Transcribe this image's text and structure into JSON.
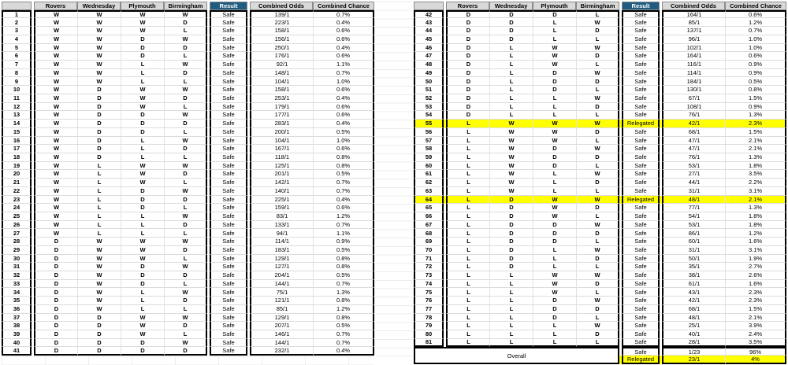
{
  "columns": [
    "Rovers",
    "Wednesday",
    "Plymouth",
    "Birmingham",
    "Result",
    "Combined Odds",
    "Combined Chance"
  ],
  "colors": {
    "header_bg": "#D9D9D9",
    "result_header_bg": "#1F5C80",
    "result_header_text": "#FFFFFF",
    "highlight": "#FFFF00",
    "box_border": "#000000",
    "gridline": "#DCDCDC"
  },
  "tables": [
    {
      "highlighted": [],
      "rows": [
        [
          1,
          "W",
          "W",
          "W",
          "W",
          "Safe",
          "139/1",
          "0.7%"
        ],
        [
          2,
          "W",
          "W",
          "W",
          "D",
          "Safe",
          "223/1",
          "0.4%"
        ],
        [
          3,
          "W",
          "W",
          "W",
          "L",
          "Safe",
          "158/1",
          "0.6%"
        ],
        [
          4,
          "W",
          "W",
          "D",
          "W",
          "Safe",
          "156/1",
          "0.6%"
        ],
        [
          5,
          "W",
          "W",
          "D",
          "D",
          "Safe",
          "250/1",
          "0.4%"
        ],
        [
          6,
          "W",
          "W",
          "D",
          "L",
          "Safe",
          "176/1",
          "0.6%"
        ],
        [
          7,
          "W",
          "W",
          "L",
          "W",
          "Safe",
          "92/1",
          "1.1%"
        ],
        [
          8,
          "W",
          "W",
          "L",
          "D",
          "Safe",
          "148/1",
          "0.7%"
        ],
        [
          9,
          "W",
          "W",
          "L",
          "L",
          "Safe",
          "104/1",
          "1.0%"
        ],
        [
          10,
          "W",
          "D",
          "W",
          "W",
          "Safe",
          "158/1",
          "0.6%"
        ],
        [
          11,
          "W",
          "D",
          "W",
          "D",
          "Safe",
          "253/1",
          "0.4%"
        ],
        [
          12,
          "W",
          "D",
          "W",
          "L",
          "Safe",
          "179/1",
          "0.6%"
        ],
        [
          13,
          "W",
          "D",
          "D",
          "W",
          "Safe",
          "177/1",
          "0.6%"
        ],
        [
          14,
          "W",
          "D",
          "D",
          "D",
          "Safe",
          "283/1",
          "0.4%"
        ],
        [
          15,
          "W",
          "D",
          "D",
          "L",
          "Safe",
          "200/1",
          "0.5%"
        ],
        [
          16,
          "W",
          "D",
          "L",
          "W",
          "Safe",
          "104/1",
          "1.0%"
        ],
        [
          17,
          "W",
          "D",
          "L",
          "D",
          "Safe",
          "167/1",
          "0.6%"
        ],
        [
          18,
          "W",
          "D",
          "L",
          "L",
          "Safe",
          "118/1",
          "0.8%"
        ],
        [
          19,
          "W",
          "L",
          "W",
          "W",
          "Safe",
          "125/1",
          "0.8%"
        ],
        [
          20,
          "W",
          "L",
          "W",
          "D",
          "Safe",
          "201/1",
          "0.5%"
        ],
        [
          21,
          "W",
          "L",
          "W",
          "L",
          "Safe",
          "142/1",
          "0.7%"
        ],
        [
          22,
          "W",
          "L",
          "D",
          "W",
          "Safe",
          "140/1",
          "0.7%"
        ],
        [
          23,
          "W",
          "L",
          "D",
          "D",
          "Safe",
          "225/1",
          "0.4%"
        ],
        [
          24,
          "W",
          "L",
          "D",
          "L",
          "Safe",
          "159/1",
          "0.6%"
        ],
        [
          25,
          "W",
          "L",
          "L",
          "W",
          "Safe",
          "83/1",
          "1.2%"
        ],
        [
          26,
          "W",
          "L",
          "L",
          "D",
          "Safe",
          "133/1",
          "0.7%"
        ],
        [
          27,
          "W",
          "L",
          "L",
          "L",
          "Safe",
          "94/1",
          "1.1%"
        ],
        [
          28,
          "D",
          "W",
          "W",
          "W",
          "Safe",
          "114/1",
          "0.9%"
        ],
        [
          29,
          "D",
          "W",
          "W",
          "D",
          "Safe",
          "183/1",
          "0.5%"
        ],
        [
          30,
          "D",
          "W",
          "W",
          "L",
          "Safe",
          "129/1",
          "0.8%"
        ],
        [
          31,
          "D",
          "W",
          "D",
          "W",
          "Safe",
          "127/1",
          "0.8%"
        ],
        [
          32,
          "D",
          "W",
          "D",
          "D",
          "Safe",
          "204/1",
          "0.5%"
        ],
        [
          33,
          "D",
          "W",
          "D",
          "L",
          "Safe",
          "144/1",
          "0.7%"
        ],
        [
          34,
          "D",
          "W",
          "L",
          "W",
          "Safe",
          "75/1",
          "1.3%"
        ],
        [
          35,
          "D",
          "W",
          "L",
          "D",
          "Safe",
          "121/1",
          "0.8%"
        ],
        [
          36,
          "D",
          "W",
          "L",
          "L",
          "Safe",
          "85/1",
          "1.2%"
        ],
        [
          37,
          "D",
          "D",
          "W",
          "W",
          "Safe",
          "129/1",
          "0.8%"
        ],
        [
          38,
          "D",
          "D",
          "W",
          "D",
          "Safe",
          "207/1",
          "0.5%"
        ],
        [
          39,
          "D",
          "D",
          "W",
          "L",
          "Safe",
          "146/1",
          "0.7%"
        ],
        [
          40,
          "D",
          "D",
          "D",
          "W",
          "Safe",
          "144/1",
          "0.7%"
        ],
        [
          41,
          "D",
          "D",
          "D",
          "D",
          "Safe",
          "232/1",
          "0.4%"
        ]
      ]
    },
    {
      "highlighted": [
        55,
        64
      ],
      "rows": [
        [
          42,
          "D",
          "D",
          "D",
          "L",
          "Safe",
          "164/1",
          "0.6%"
        ],
        [
          43,
          "D",
          "D",
          "L",
          "W",
          "Safe",
          "85/1",
          "1.2%"
        ],
        [
          44,
          "D",
          "D",
          "L",
          "D",
          "Safe",
          "137/1",
          "0.7%"
        ],
        [
          45,
          "D",
          "D",
          "L",
          "L",
          "Safe",
          "96/1",
          "1.0%"
        ],
        [
          46,
          "D",
          "L",
          "W",
          "W",
          "Safe",
          "102/1",
          "1.0%"
        ],
        [
          47,
          "D",
          "L",
          "W",
          "D",
          "Safe",
          "164/1",
          "0.6%"
        ],
        [
          48,
          "D",
          "L",
          "W",
          "L",
          "Safe",
          "116/1",
          "0.9%"
        ],
        [
          49,
          "D",
          "L",
          "D",
          "W",
          "Safe",
          "114/1",
          "0.9%"
        ],
        [
          50,
          "D",
          "L",
          "D",
          "D",
          "Safe",
          "184/1",
          "0.5%"
        ],
        [
          51,
          "D",
          "L",
          "D",
          "L",
          "Safe",
          "130/1",
          "0.8%"
        ],
        [
          52,
          "D",
          "L",
          "L",
          "W",
          "Safe",
          "67/1",
          "1.5%"
        ],
        [
          53,
          "D",
          "L",
          "L",
          "D",
          "Safe",
          "108/1",
          "0.9%"
        ],
        [
          54,
          "D",
          "L",
          "L",
          "L",
          "Safe",
          "76/1",
          "1.3%"
        ],
        [
          55,
          "L",
          "W",
          "W",
          "W",
          "Relegated",
          "42/1",
          "2.3%"
        ],
        [
          56,
          "L",
          "W",
          "W",
          "D",
          "Safe",
          "68/1",
          "1.5%"
        ],
        [
          57,
          "L",
          "W",
          "W",
          "L",
          "Safe",
          "47/1",
          "2.1%"
        ],
        [
          58,
          "L",
          "W",
          "D",
          "W",
          "Safe",
          "47/1",
          "2.1%"
        ],
        [
          59,
          "L",
          "W",
          "D",
          "D",
          "Safe",
          "76/1",
          "1.3%"
        ],
        [
          60,
          "L",
          "W",
          "D",
          "L",
          "Safe",
          "53/1",
          "1.8%"
        ],
        [
          61,
          "L",
          "W",
          "L",
          "W",
          "Safe",
          "27/1",
          "3.5%"
        ],
        [
          62,
          "L",
          "W",
          "L",
          "D",
          "Safe",
          "44/1",
          "2.2%"
        ],
        [
          63,
          "L",
          "W",
          "L",
          "L",
          "Safe",
          "31/1",
          "3.1%"
        ],
        [
          64,
          "L",
          "D",
          "W",
          "W",
          "Relegated",
          "48/1",
          "2.1%"
        ],
        [
          65,
          "L",
          "D",
          "W",
          "D",
          "Safe",
          "77/1",
          "1.3%"
        ],
        [
          66,
          "L",
          "D",
          "W",
          "L",
          "Safe",
          "54/1",
          "1.8%"
        ],
        [
          67,
          "L",
          "D",
          "D",
          "W",
          "Safe",
          "53/1",
          "1.8%"
        ],
        [
          68,
          "L",
          "D",
          "D",
          "D",
          "Safe",
          "86/1",
          "1.2%"
        ],
        [
          69,
          "L",
          "D",
          "D",
          "L",
          "Safe",
          "60/1",
          "1.6%"
        ],
        [
          70,
          "L",
          "D",
          "L",
          "W",
          "Safe",
          "31/1",
          "3.1%"
        ],
        [
          71,
          "L",
          "D",
          "L",
          "D",
          "Safe",
          "50/1",
          "1.9%"
        ],
        [
          72,
          "L",
          "D",
          "L",
          "L",
          "Safe",
          "35/1",
          "2.7%"
        ],
        [
          73,
          "L",
          "L",
          "W",
          "W",
          "Safe",
          "38/1",
          "2.6%"
        ],
        [
          74,
          "L",
          "L",
          "W",
          "D",
          "Safe",
          "61/1",
          "1.6%"
        ],
        [
          75,
          "L",
          "L",
          "W",
          "L",
          "Safe",
          "43/1",
          "2.3%"
        ],
        [
          76,
          "L",
          "L",
          "D",
          "W",
          "Safe",
          "42/1",
          "2.3%"
        ],
        [
          77,
          "L",
          "L",
          "D",
          "D",
          "Safe",
          "68/1",
          "1.5%"
        ],
        [
          78,
          "L",
          "L",
          "D",
          "L",
          "Safe",
          "48/1",
          "2.1%"
        ],
        [
          79,
          "L",
          "L",
          "L",
          "W",
          "Safe",
          "25/1",
          "3.9%"
        ],
        [
          80,
          "L",
          "L",
          "L",
          "D",
          "Safe",
          "40/1",
          "2.4%"
        ],
        [
          81,
          "L",
          "L",
          "L",
          "L",
          "Safe",
          "28/1",
          "3.5%"
        ]
      ],
      "overall": {
        "label": "Overall",
        "rows": [
          [
            "Safe",
            "1/23",
            "96%"
          ],
          [
            "Relegated",
            "23/1",
            "4%"
          ]
        ],
        "highlighted_row": 1
      }
    }
  ]
}
